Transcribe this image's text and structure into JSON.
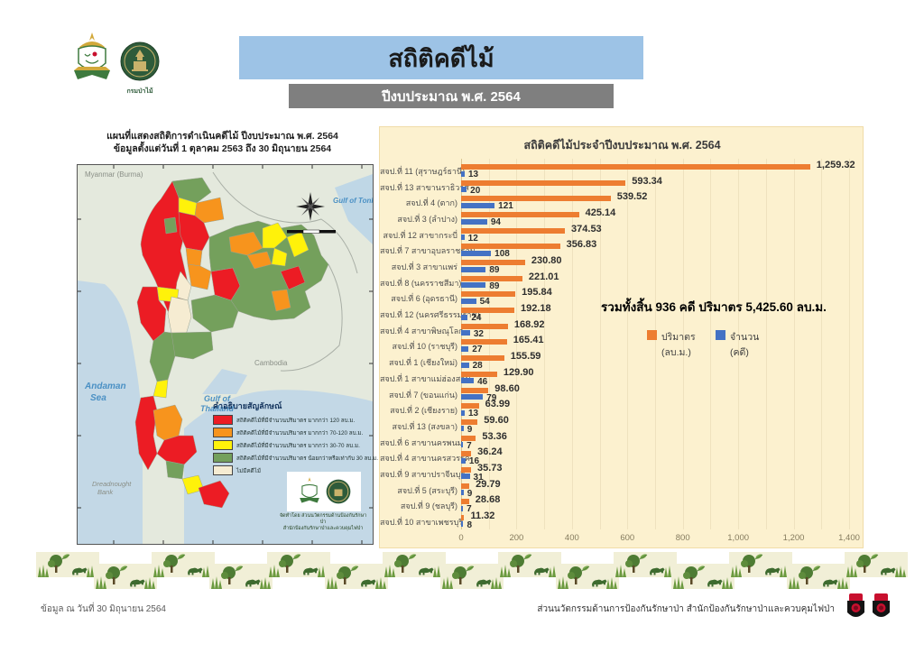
{
  "header": {
    "title": "สถิติคดีไม้",
    "subtitle": "ปีงบประมาณ พ.ศ. 2564",
    "logo_caption": "กรมป่าไม้"
  },
  "map": {
    "title_line1": "แผนที่แสดงสถิติการดำเนินคดีไม้ ปีงบประมาณ พ.ศ. 2564",
    "title_line2": "ข้อมูลตั้งแต่วันที่ 1 ตุลาคม 2563 ถึง 30 มิถุนายน 2564",
    "labels": {
      "burma": "Myanmar (Burma)",
      "gulf_tonkin": "Gulf of Tonkin",
      "cambodia": "Cambodia",
      "andaman_1": "Andaman",
      "andaman_2": "Sea",
      "gulf_thailand_1": "Gulf of",
      "gulf_thailand_2": "Thailand",
      "dreadnought_1": "Dreadnought",
      "dreadnought_2": "Bank"
    },
    "legend": {
      "title": "คำอธิบายสัญลักษณ์",
      "items": [
        {
          "color": "#EC1C24",
          "label": "สถิติคดีไม้ที่มีจำนวนปริมาตร มากกว่า 120 ลบ.ม."
        },
        {
          "color": "#F7941D",
          "label": "สถิติคดีไม้ที่มีจำนวนปริมาตร มากกว่า 70-120 ลบ.ม."
        },
        {
          "color": "#FFF20A",
          "label": "สถิติคดีไม้ที่มีจำนวนปริมาตร มากกว่า 30-70 ลบ.ม."
        },
        {
          "color": "#74A05C",
          "label": "สถิติคดีไม้ที่มีจำนวนปริมาตร น้อยกว่าหรือเท่ากับ 30 ลบ.ม."
        },
        {
          "color": "#F6ECD2",
          "label": "ไม่มีคดีไม้"
        }
      ]
    },
    "credit_line1": "จัดทำโดย ส่วนนวัตกรรมด้านป้องกันรักษาป่า",
    "credit_line2": "สำนักป้องกันรักษาป่าและควบคุมไฟป่า"
  },
  "chart_data": {
    "type": "bar",
    "orientation": "horizontal",
    "title": "สถิติคดีไม้ประจำปีงบประมาณ พ.ศ. 2564",
    "xlim": [
      0,
      1400
    ],
    "x_ticks": [
      "0",
      "200",
      "400",
      "600",
      "800",
      "1,000",
      "1,200",
      "1,400"
    ],
    "grid": "minor vertical every 100",
    "summary": "รวมทั้งสิ้น 936 คดี ปริมาตร 5,425.60 ลบ.ม.",
    "legend": [
      {
        "line1": "ปริมาตร",
        "line2": "(ลบ.ม.)",
        "color": "#ED7D31"
      },
      {
        "line1": "จำนวน",
        "line2": "(คดี)",
        "color": "#4472C4"
      }
    ],
    "series_names": [
      "ปริมาตร (ลบ.ม.)",
      "จำนวน (คดี)"
    ],
    "rows": [
      {
        "name": "สจป.ที่ 11 (สุราษฎร์ธานี)",
        "volume": 1259.32,
        "volume_label": "1,259.32",
        "cases": 13
      },
      {
        "name": "สจป.ที่ 13 สาขานราธิวาส",
        "volume": 593.34,
        "volume_label": "593.34",
        "cases": 20
      },
      {
        "name": "สจป.ที่ 4 (ตาก)",
        "volume": 539.52,
        "volume_label": "539.52",
        "cases": 121
      },
      {
        "name": "สจป.ที่ 3 (ลำปาง)",
        "volume": 425.14,
        "volume_label": "425.14",
        "cases": 94
      },
      {
        "name": "สจป.ที่ 12 สาขากระบี่",
        "volume": 374.53,
        "volume_label": "374.53",
        "cases": 12
      },
      {
        "name": "สจป.ที่ 7 สาขาอุบลราชธานี",
        "volume": 356.83,
        "volume_label": "356.83",
        "cases": 108
      },
      {
        "name": "สจป.ที่ 3 สาขาแพร่",
        "volume": 230.8,
        "volume_label": "230.80",
        "cases": 89
      },
      {
        "name": "สจป.ที่ 8 (นครราชสีมา)",
        "volume": 221.01,
        "volume_label": "221.01",
        "cases": 89
      },
      {
        "name": "สจป.ที่ 6 (อุดรธานี)",
        "volume": 195.84,
        "volume_label": "195.84",
        "cases": 54
      },
      {
        "name": "สจป.ที่ 12 (นครศรีธรรมราช)",
        "volume": 192.18,
        "volume_label": "192.18",
        "cases": 24
      },
      {
        "name": "สจป.ที่ 4 สาขาพิษณุโลก",
        "volume": 168.92,
        "volume_label": "168.92",
        "cases": 32
      },
      {
        "name": "สจป.ที่ 10 (ราชบุรี)",
        "volume": 165.41,
        "volume_label": "165.41",
        "cases": 27
      },
      {
        "name": "สจป.ที่ 1 (เชียงใหม่)",
        "volume": 155.59,
        "volume_label": "155.59",
        "cases": 28
      },
      {
        "name": "สจป.ที่ 1 สาขาแม่ฮ่องสอน",
        "volume": 129.9,
        "volume_label": "129.90",
        "cases": 46
      },
      {
        "name": "สจป.ที่ 7 (ขอนแก่น)",
        "volume": 98.6,
        "volume_label": "98.60",
        "cases": 79
      },
      {
        "name": "สจป.ที่ 2 (เชียงราย)",
        "volume": 63.99,
        "volume_label": "63.99",
        "cases": 13
      },
      {
        "name": "สจป.ที่ 13 (สงขลา)",
        "volume": 59.6,
        "volume_label": "59.60",
        "cases": 9
      },
      {
        "name": "สจป.ที่ 6 สาขานครพนม",
        "volume": 53.36,
        "volume_label": "53.36",
        "cases": 7
      },
      {
        "name": "สจป.ที่ 4 สาขานครสวรรค์",
        "volume": 36.24,
        "volume_label": "36.24",
        "cases": 16
      },
      {
        "name": "สจป.ที่ 9 สาขาปราจีนบุรี",
        "volume": 35.73,
        "volume_label": "35.73",
        "cases": 31
      },
      {
        "name": "สจป.ที่ 5 (สระบุรี)",
        "volume": 29.79,
        "volume_label": "29.79",
        "cases": 9
      },
      {
        "name": "สจป.ที่ 9 (ชลบุรี)",
        "volume": 28.68,
        "volume_label": "28.68",
        "cases": 7
      },
      {
        "name": "สจป.ที่ 10 สาขาเพชรบุรี",
        "volume": 11.32,
        "volume_label": "11.32",
        "cases": 8
      }
    ]
  },
  "footer": {
    "left": "ข้อมูล ณ วันที่ 30 มิถุนายน 2564",
    "right": "ส่วนนวัตกรรมด้านการป้องกันรักษาป่า สำนักป้องกันรักษาป่าและควบคุมไฟป่า"
  }
}
